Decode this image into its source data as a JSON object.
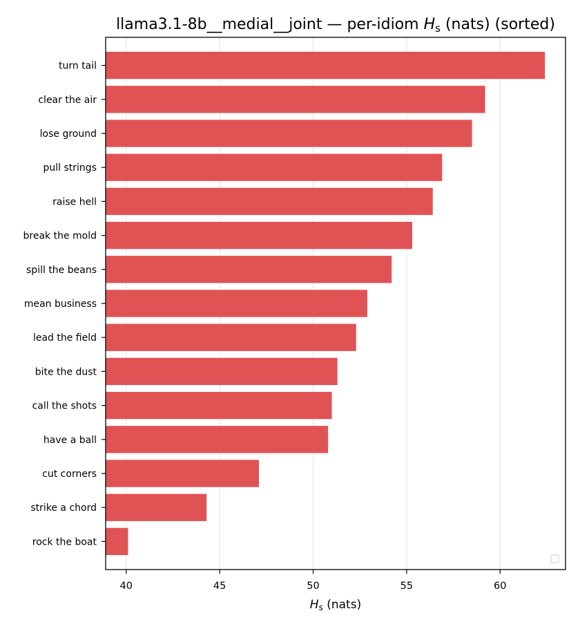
{
  "chart_data": {
    "type": "bar",
    "orientation": "horizontal",
    "title_prefix": "llama3.1-8b__medial__joint — per-idiom ",
    "title_symbol": "H",
    "title_subscript": "s",
    "title_suffix": " (nats) (sorted)",
    "xlabel_symbol": "H",
    "xlabel_subscript": "s",
    "xlabel_suffix": " (nats)",
    "ylabel": "",
    "categories": [
      "turn tail",
      "clear the air",
      "lose ground",
      "pull strings",
      "raise hell",
      "break the mold",
      "spill the beans",
      "mean business",
      "lead the field",
      "bite the dust",
      "call the shots",
      "have a ball",
      "cut corners",
      "strike a chord",
      "rock the boat"
    ],
    "values": [
      62.4,
      59.2,
      58.5,
      56.9,
      56.4,
      55.3,
      54.2,
      52.9,
      52.3,
      51.3,
      51.0,
      50.8,
      47.1,
      44.3,
      40.1
    ],
    "xlim": [
      38.9,
      63.5
    ],
    "xticks": [
      40,
      45,
      50,
      55,
      60
    ],
    "grid": "x",
    "legend": "lower-right (empty)",
    "bar_color": "#e05355",
    "grid_color": "#e6e6e6"
  }
}
